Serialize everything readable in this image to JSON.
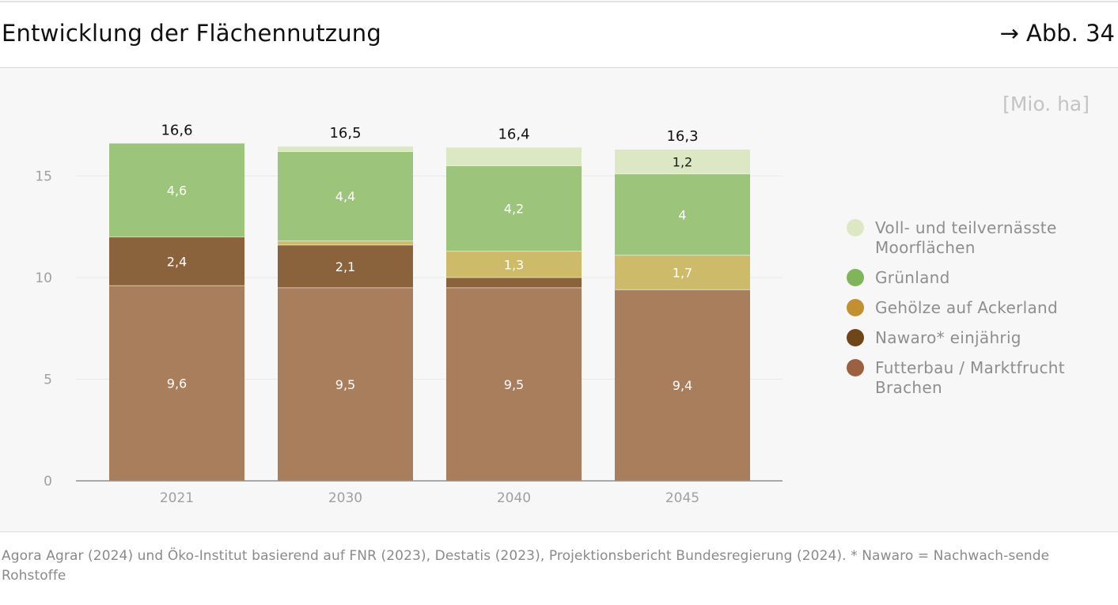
{
  "header": {
    "title": "Entwicklung der Flächennutzung",
    "figure_ref": "→ Abb. 34"
  },
  "chart_data": {
    "type": "bar",
    "stacked": true,
    "unit_label": "[Mio. ha]",
    "categories": [
      "2021",
      "2030",
      "2040",
      "2045"
    ],
    "ylim": [
      0,
      16.6
    ],
    "yticks": [
      0,
      5,
      10,
      15
    ],
    "grid": true,
    "legend_position": "right",
    "series": [
      {
        "name": "Futterbau / Marktfrucht Brachen",
        "color": "#a97e5d",
        "legend_color": "#9b6040",
        "values": [
          9.6,
          9.5,
          9.5,
          9.4
        ],
        "labels": [
          "9,6",
          "9,5",
          "9,5",
          "9,4"
        ]
      },
      {
        "name": "Nawaro* einjährig",
        "color": "#8a633d",
        "legend_color": "#6e4618",
        "values": [
          2.4,
          2.1,
          0.5,
          0
        ],
        "labels": [
          "2,4",
          "2,1",
          "",
          ""
        ]
      },
      {
        "name": "Gehölze auf Ackerland",
        "color": "#cdbb6a",
        "legend_color": "#c2902e",
        "values": [
          0,
          0.2,
          1.3,
          1.7
        ],
        "labels": [
          "",
          "",
          "1,3",
          "1,7"
        ]
      },
      {
        "name": "Grünland",
        "color": "#9dc47b",
        "legend_color": "#80b659",
        "values": [
          4.6,
          4.4,
          4.2,
          4.0
        ],
        "labels": [
          "4,6",
          "4,4",
          "4,2",
          "4"
        ]
      },
      {
        "name": "Voll- und teilvernässte Moorflächen",
        "color": "#dce8c3",
        "legend_color": "#dce8c3",
        "values": [
          0,
          0.25,
          0.9,
          1.2
        ],
        "labels": [
          "",
          "",
          "",
          "1,2"
        ]
      }
    ],
    "totals": [
      "16,6",
      "16,5",
      "16,4",
      "16,3"
    ]
  },
  "legend": [
    {
      "label": "Voll- und teilvernässte Moorflächen",
      "color": "#dce8c3"
    },
    {
      "label": "Grünland",
      "color": "#80b659"
    },
    {
      "label": "Gehölze auf Ackerland",
      "color": "#c2902e"
    },
    {
      "label": "Nawaro* einjährig",
      "color": "#6e4618"
    },
    {
      "label": "Futterbau / Marktfrucht Brachen",
      "color": "#9b6040"
    }
  ],
  "source": "Agora Agrar (2024) und Öko-Institut basierend auf FNR (2023), Destatis (2023), Projektionsbericht Bundesregierung (2024). * Nawaro = Nachwach-sende Rohstoffe"
}
